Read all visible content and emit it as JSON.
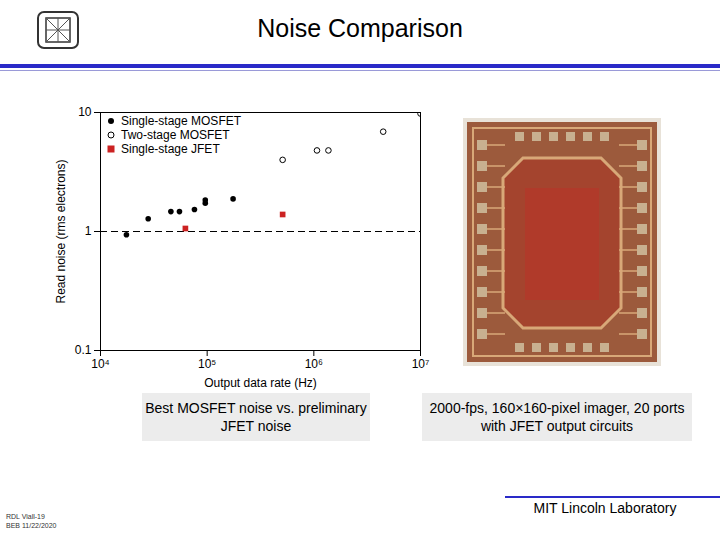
{
  "header": {
    "title": "Noise Comparison"
  },
  "chart_data": {
    "type": "scatter",
    "log": true,
    "grid": false,
    "legend": "upper left",
    "xlabel": "Output data rate (Hz)",
    "ylabel": "Read noise (rms electrons)",
    "xlim": [
      10000,
      10000000
    ],
    "ylim": [
      0.1,
      10
    ],
    "xticks": [
      {
        "value": 10000,
        "label": "10⁴"
      },
      {
        "value": 100000,
        "label": "10⁵"
      },
      {
        "value": 1000000,
        "label": "10⁶"
      },
      {
        "value": 10000000,
        "label": "10⁷"
      }
    ],
    "yticks": [
      0.1,
      1,
      10
    ],
    "hline": 1,
    "series": [
      {
        "name": "Single-stage MOSFET",
        "color": "#000000",
        "marker": "circle",
        "x": [
          17500,
          28000,
          45700,
          55000,
          76000,
          96000,
          96000,
          175000
        ],
        "values": [
          0.94,
          1.28,
          1.47,
          1.47,
          1.53,
          1.73,
          1.84,
          1.88
        ]
      },
      {
        "name": "Two-stage MOSFET",
        "color": "#000000",
        "marker": "open_circle",
        "x": [
          510000,
          1070000,
          1370000,
          4470000,
          10000000
        ],
        "values": [
          4.0,
          4.8,
          4.8,
          6.9,
          9.8
        ]
      },
      {
        "name": "Single-stage JFET",
        "color": "#cc2222",
        "marker": "square",
        "x": [
          62500,
          510000
        ],
        "values": [
          1.06,
          1.39
        ]
      }
    ]
  },
  "captions": {
    "chart": "Best MOSFET noise vs. preliminary JFET noise",
    "image": "2000-fps, 160×160-pixel imager, 20 ports with JFET output circuits"
  },
  "footer": {
    "lab": "MIT Lincoln Laboratory",
    "id": "RDL Viall-19",
    "reference": "BEB 11/22/2020"
  }
}
